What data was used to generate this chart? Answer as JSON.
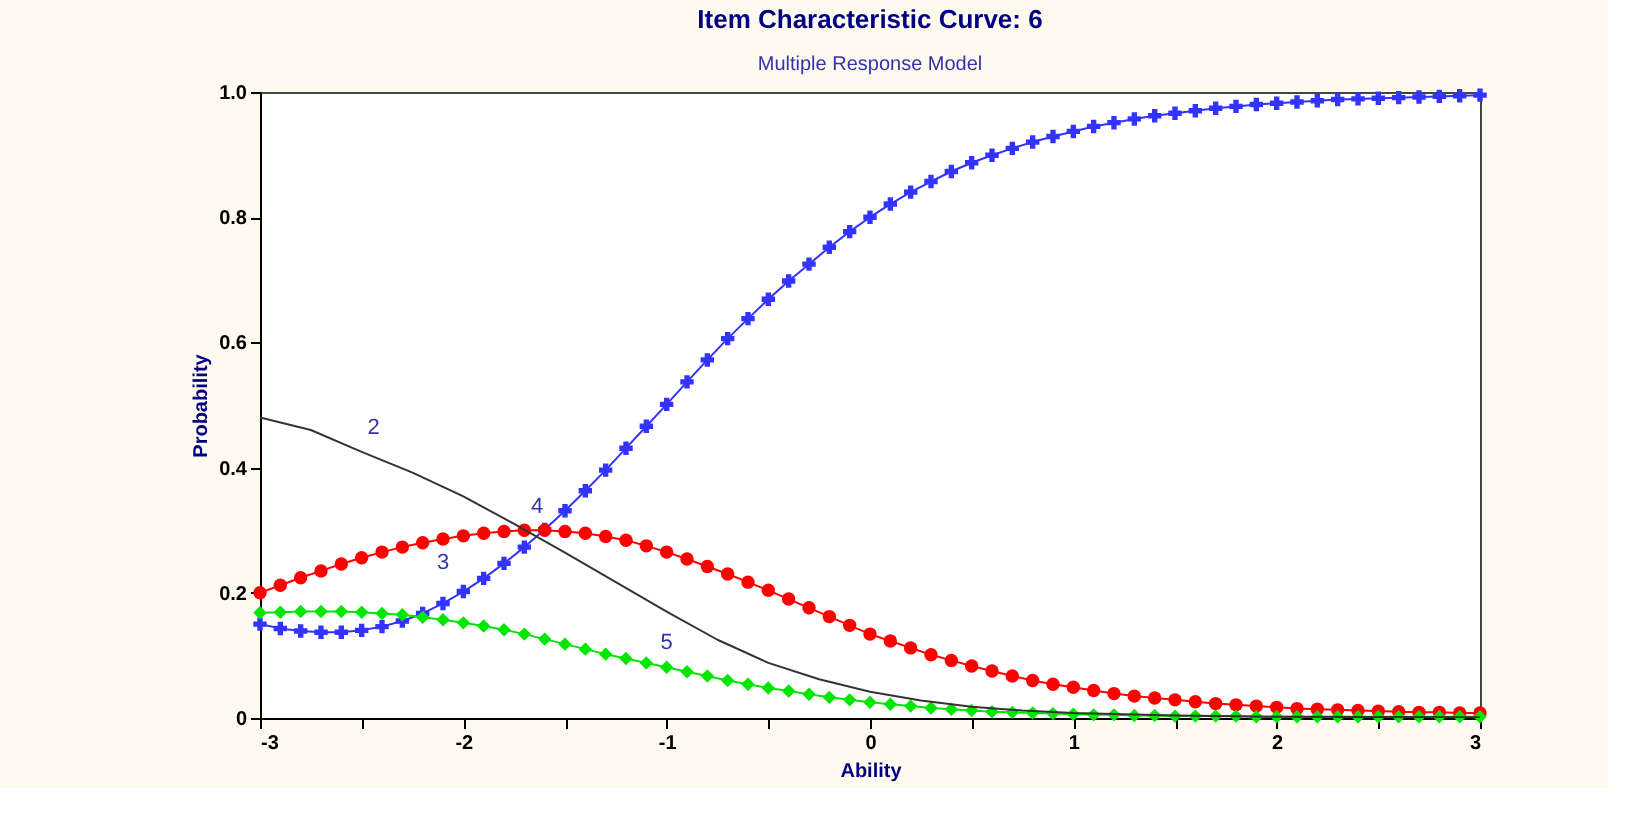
{
  "chart_data": {
    "type": "line",
    "title": "Item Characteristic Curve: 6",
    "subtitle": "Multiple Response Model",
    "xlabel": "Ability",
    "ylabel": "Probability",
    "x": [
      -3.0,
      -2.9,
      -2.8,
      -2.7,
      -2.6,
      -2.5,
      -2.4,
      -2.3,
      -2.2,
      -2.1,
      -2.0,
      -1.9,
      -1.8,
      -1.7,
      -1.6,
      -1.5,
      -1.4,
      -1.3,
      -1.2,
      -1.1,
      -1.0,
      -0.9,
      -0.8,
      -0.7,
      -0.6,
      -0.5,
      -0.4,
      -0.3,
      -0.2,
      -0.1,
      0.0,
      0.1,
      0.2,
      0.3,
      0.4,
      0.5,
      0.6,
      0.7,
      0.8,
      0.9,
      1.0,
      1.1,
      1.2,
      1.3,
      1.4,
      1.5,
      1.6,
      1.7,
      1.8,
      1.9,
      2.0,
      2.1,
      2.2,
      2.3,
      2.4,
      2.5,
      2.6,
      2.7,
      2.8,
      2.9,
      3.0
    ],
    "series": [
      {
        "name": "4",
        "color": "#3333ff",
        "marker": "cross",
        "values": [
          0.15,
          0.143,
          0.139,
          0.137,
          0.137,
          0.14,
          0.146,
          0.155,
          0.167,
          0.183,
          0.202,
          0.223,
          0.247,
          0.273,
          0.301,
          0.331,
          0.363,
          0.396,
          0.431,
          0.466,
          0.501,
          0.537,
          0.572,
          0.606,
          0.638,
          0.669,
          0.698,
          0.725,
          0.752,
          0.777,
          0.8,
          0.821,
          0.84,
          0.857,
          0.873,
          0.887,
          0.899,
          0.91,
          0.92,
          0.929,
          0.937,
          0.945,
          0.951,
          0.957,
          0.962,
          0.966,
          0.97,
          0.974,
          0.977,
          0.98,
          0.982,
          0.984,
          0.986,
          0.988,
          0.989,
          0.99,
          0.991,
          0.992,
          0.993,
          0.994,
          0.995
        ]
      },
      {
        "name": "3",
        "color": "#ff0000",
        "marker": "circle",
        "values": [
          0.2,
          0.212,
          0.224,
          0.235,
          0.246,
          0.256,
          0.265,
          0.273,
          0.28,
          0.286,
          0.291,
          0.295,
          0.298,
          0.3,
          0.3,
          0.298,
          0.295,
          0.29,
          0.284,
          0.275,
          0.265,
          0.254,
          0.242,
          0.23,
          0.217,
          0.204,
          0.19,
          0.176,
          0.162,
          0.148,
          0.134,
          0.123,
          0.112,
          0.101,
          0.092,
          0.083,
          0.075,
          0.067,
          0.06,
          0.054,
          0.049,
          0.044,
          0.039,
          0.035,
          0.032,
          0.029,
          0.026,
          0.023,
          0.021,
          0.019,
          0.017,
          0.015,
          0.014,
          0.013,
          0.012,
          0.011,
          0.01,
          0.009,
          0.009,
          0.008,
          0.008
        ]
      },
      {
        "name": "5",
        "color": "#00e600",
        "marker": "diamond",
        "values": [
          0.168,
          0.169,
          0.17,
          0.17,
          0.17,
          0.169,
          0.167,
          0.165,
          0.161,
          0.157,
          0.152,
          0.147,
          0.141,
          0.134,
          0.126,
          0.118,
          0.11,
          0.102,
          0.095,
          0.088,
          0.081,
          0.074,
          0.067,
          0.06,
          0.054,
          0.048,
          0.043,
          0.038,
          0.033,
          0.029,
          0.025,
          0.022,
          0.019,
          0.016,
          0.014,
          0.012,
          0.01,
          0.009,
          0.008,
          0.007,
          0.006,
          0.005,
          0.005,
          0.004,
          0.004,
          0.003,
          0.003,
          0.003,
          0.003,
          0.002,
          0.002,
          0.002,
          0.002,
          0.002,
          0.002,
          0.002,
          0.002,
          0.002,
          0.002,
          0.002,
          0.002
        ]
      },
      {
        "name": "2",
        "color": "#333333",
        "marker": "none",
        "x": [
          -3,
          -2.75,
          -2.5,
          -2.25,
          -2,
          -1.75,
          -1.5,
          -1.25,
          -1,
          -0.75,
          -0.5,
          -0.25,
          0,
          0.25,
          0.5,
          0.75,
          1,
          1.5,
          2,
          3
        ],
        "values": [
          0.48,
          0.46,
          0.425,
          0.392,
          0.354,
          0.31,
          0.264,
          0.217,
          0.17,
          0.125,
          0.088,
          0.062,
          0.042,
          0.028,
          0.018,
          0.012,
          0.008,
          0.004,
          0.002,
          0.001
        ]
      }
    ],
    "xlim": [
      -3,
      3
    ],
    "ylim": [
      0,
      1
    ],
    "xticks": [
      -3,
      {
        "value": -2.5,
        "label": null
      },
      -2,
      {
        "value": -1.5,
        "label": null
      },
      -1,
      {
        "value": -0.5,
        "label": null
      },
      0,
      {
        "value": 0.5,
        "label": null
      },
      1,
      {
        "value": 1.5,
        "label": null
      },
      2,
      {
        "value": 2.5,
        "label": null
      },
      3
    ],
    "yticks": [
      0,
      0.2,
      0.4,
      0.6,
      0.8,
      {
        "value": 1,
        "label": "1.0"
      }
    ],
    "grid": false,
    "line_style": "solid"
  }
}
